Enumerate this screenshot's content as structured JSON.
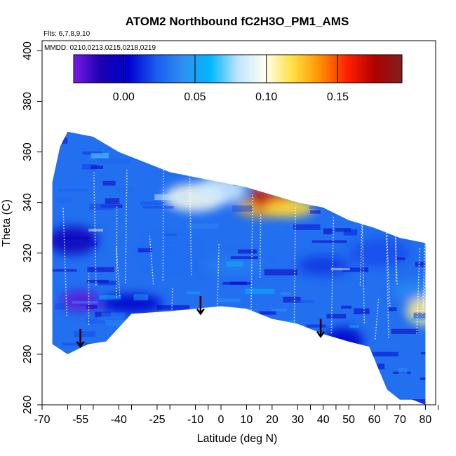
{
  "chart_data": {
    "type": "heatmap",
    "title": "ATOM2 Northbound fC2H3O_PM1_AMS",
    "subtitle_flights": "Flts: 6,7,8,9,10",
    "subtitle_dates": "MMDD: 0210,0213,0215,0218,0219",
    "xlabel": "Latitude (deg N)",
    "ylabel": "Theta (C)",
    "xlim": [
      -70,
      84
    ],
    "ylim": [
      260,
      404
    ],
    "x_ticks": [
      -70,
      -60,
      -55,
      -50,
      -40,
      -35,
      -25,
      -20,
      -10,
      -5,
      0,
      10,
      15,
      20,
      30,
      35,
      40,
      45,
      50,
      60,
      65,
      70,
      80,
      85
    ],
    "x_tick_labels": [
      "-70",
      "-55",
      "-40",
      "-25",
      "-10",
      "0",
      "10",
      "20",
      "30",
      "40",
      "50",
      "60",
      "70",
      "80"
    ],
    "x_tick_label_values": [
      -70,
      -55,
      -40,
      -25,
      -10,
      0,
      10,
      20,
      30,
      40,
      50,
      60,
      70,
      80
    ],
    "y_ticks": [
      260,
      280,
      300,
      320,
      340,
      360,
      380,
      400
    ],
    "y_tick_labels": [
      "260",
      "280",
      "300",
      "320",
      "340",
      "360",
      "380",
      "400"
    ],
    "colorbar": {
      "min": -0.035,
      "max": 0.195,
      "ticks": [
        0.0,
        0.05,
        0.1,
        0.15
      ],
      "tick_labels": [
        "0.00",
        "0.05",
        "0.10",
        "0.15"
      ],
      "colors": [
        "#7a1ae6",
        "#1a00b0",
        "#0000d0",
        "#1a5af0",
        "#2e90f0",
        "#00b8ff",
        "#bfe4ff",
        "#fffff0",
        "#ffe040",
        "#ff9000",
        "#ff2000",
        "#b00000",
        "#802020"
      ]
    },
    "data_upper_boundary": [
      [
        -66,
        348
      ],
      [
        -63,
        362
      ],
      [
        -60,
        368
      ],
      [
        -50,
        366
      ],
      [
        -40,
        360
      ],
      [
        -30,
        356
      ],
      [
        -20,
        352
      ],
      [
        -10,
        350
      ],
      [
        0,
        348
      ],
      [
        10,
        346
      ],
      [
        20,
        343
      ],
      [
        30,
        340
      ],
      [
        40,
        338
      ],
      [
        50,
        333
      ],
      [
        60,
        330
      ],
      [
        70,
        326
      ],
      [
        80,
        324
      ]
    ],
    "data_lower_boundary": [
      [
        -66,
        284
      ],
      [
        -60,
        280
      ],
      [
        -52,
        284
      ],
      [
        -45,
        285
      ],
      [
        -35,
        296
      ],
      [
        -20,
        297
      ],
      [
        -10,
        298
      ],
      [
        0,
        299
      ],
      [
        10,
        298
      ],
      [
        20,
        294
      ],
      [
        30,
        292
      ],
      [
        40,
        288
      ],
      [
        50,
        285
      ],
      [
        58,
        283
      ],
      [
        65,
        266
      ],
      [
        70,
        262
      ],
      [
        75,
        262
      ],
      [
        80,
        260
      ]
    ],
    "arrows": [
      {
        "lat": -55,
        "theta": 290
      },
      {
        "lat": -8,
        "theta": 303
      },
      {
        "lat": 39,
        "theta": 294
      }
    ],
    "features": [
      {
        "lat": -55,
        "theta": 301,
        "value": -0.03
      },
      {
        "lat": -58,
        "theta": 325,
        "value": -0.01
      },
      {
        "lat": 18,
        "theta": 338,
        "value": 0.13
      },
      {
        "lat": 19,
        "theta": 343,
        "value": 0.17
      },
      {
        "lat": 27,
        "theta": 338,
        "value": 0.12
      },
      {
        "lat": -10,
        "theta": 342,
        "value": 0.1
      },
      {
        "lat": 20,
        "theta": 350,
        "value": 0.08
      },
      {
        "lat": 0,
        "theta": 345,
        "value": 0.085
      },
      {
        "lat": -35,
        "theta": 300,
        "value": 0.0
      },
      {
        "lat": 48,
        "theta": 285,
        "value": 0.0
      },
      {
        "lat": 40,
        "theta": 315,
        "value": 0.015
      },
      {
        "lat": 62,
        "theta": 320,
        "value": 0.02
      },
      {
        "lat": 75,
        "theta": 305,
        "value": 0.04
      },
      {
        "lat": -20,
        "theta": 320,
        "value": 0.03
      },
      {
        "lat": 5,
        "theta": 315,
        "value": 0.035
      },
      {
        "lat": 80,
        "theta": 297,
        "value": 0.11
      }
    ]
  }
}
